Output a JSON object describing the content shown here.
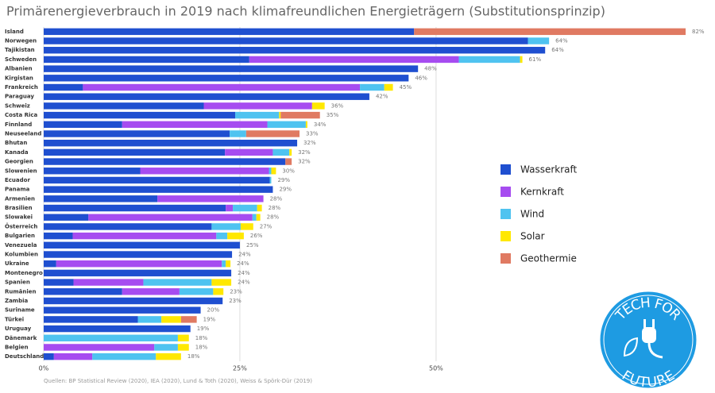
{
  "chart_data": {
    "type": "stacked-barh",
    "title": "Primärenergieverbrauch in 2019 nach klimafreundlichen Energieträgern (Substitutionsprinzip)",
    "categories": [
      "Island",
      "Norwegen",
      "Tajikistan",
      "Schweden",
      "Albanien",
      "Kirgistan",
      "Frankreich",
      "Paraguay",
      "Schweiz",
      "Costa Rica",
      "Finnland",
      "Neuseeland",
      "Bhutan",
      "Kanada",
      "Georgien",
      "Slowenien",
      "Ecuador",
      "Panama",
      "Armenien",
      "Brasilien",
      "Slowakei",
      "Österreich",
      "Bulgarien",
      "Venezuela",
      "Kolumbien",
      "Ukraine",
      "Montenegro",
      "Spanien",
      "Rumänien",
      "Zambia",
      "Suriname",
      "Türkei",
      "Uruguay",
      "Dänemark",
      "Belgien",
      "Deutschland"
    ],
    "series": [
      {
        "name": "Wasserkraft",
        "color": "#1f4fd0",
        "values": [
          47.2,
          61.7,
          63.9,
          26.2,
          47.7,
          46.5,
          5.0,
          41.5,
          20.4,
          24.4,
          10.0,
          23.7,
          32.3,
          23.1,
          30.8,
          12.3,
          28.8,
          29.2,
          14.5,
          23.2,
          5.7,
          21.4,
          3.7,
          25.0,
          24.0,
          1.6,
          23.9,
          3.8,
          10.0,
          22.8,
          20.0,
          12.0,
          18.7,
          null,
          null,
          1.3
        ]
      },
      {
        "name": "Kernkraft",
        "color": "#a64cf0",
        "values": [
          null,
          null,
          null,
          26.7,
          null,
          null,
          35.3,
          null,
          13.8,
          null,
          18.5,
          null,
          null,
          6.1,
          null,
          16.4,
          null,
          null,
          13.5,
          0.9,
          20.9,
          null,
          18.3,
          null,
          null,
          21.1,
          null,
          8.9,
          7.3,
          null,
          null,
          null,
          null,
          null,
          14.1,
          4.9
        ]
      },
      {
        "name": "Wind",
        "color": "#4fc3f0",
        "values": [
          null,
          2.7,
          null,
          7.8,
          null,
          null,
          3.1,
          null,
          null,
          5.6,
          4.9,
          2.1,
          null,
          2.1,
          null,
          0.3,
          0.2,
          null,
          null,
          3.1,
          0.5,
          3.7,
          1.4,
          null,
          null,
          0.5,
          null,
          8.7,
          4.3,
          null,
          null,
          3.0,
          null,
          17.1,
          3.0,
          8.1
        ]
      },
      {
        "name": "Solar",
        "color": "#ffe800",
        "values": [
          null,
          null,
          null,
          0.3,
          null,
          null,
          1.1,
          null,
          1.6,
          0.2,
          0.2,
          null,
          null,
          0.3,
          null,
          0.6,
          null,
          null,
          null,
          0.6,
          0.5,
          1.6,
          2.1,
          null,
          null,
          0.6,
          null,
          2.5,
          1.3,
          null,
          null,
          2.5,
          null,
          1.4,
          1.4,
          3.2
        ]
      },
      {
        "name": "Geothermie",
        "color": "#e07a62",
        "values": [
          34.6,
          null,
          null,
          null,
          null,
          null,
          null,
          null,
          null,
          5.0,
          null,
          6.8,
          null,
          null,
          0.8,
          null,
          null,
          null,
          null,
          null,
          null,
          null,
          null,
          null,
          null,
          null,
          null,
          null,
          null,
          null,
          null,
          2.0,
          null,
          null,
          null,
          null
        ]
      }
    ],
    "total_labels": [
      "82%",
      "64%",
      "64%",
      "61%",
      "48%",
      "46%",
      "45%",
      "42%",
      "36%",
      "35%",
      "34%",
      "33%",
      "32%",
      "32%",
      "32%",
      "30%",
      "29%",
      "29%",
      "28%",
      "28%",
      "28%",
      "27%",
      "26%",
      "25%",
      "24%",
      "24%",
      "24%",
      "24%",
      "23%",
      "23%",
      "20%",
      "19%",
      "19%",
      "18%",
      "18%",
      "18%"
    ],
    "xlim": [
      0,
      82
    ],
    "xticks": [
      {
        "value": 0,
        "label": "0%"
      },
      {
        "value": 25,
        "label": "25%"
      },
      {
        "value": 50,
        "label": "50%"
      }
    ],
    "grid": true,
    "source": "Quellen: BP Statistical Review (2020), IEA (2020), Lund & Toth (2020), Weiss & Spörk-Dür (2019)"
  },
  "logo": {
    "top": "TECH FOR",
    "bottom": "FUTURE"
  }
}
